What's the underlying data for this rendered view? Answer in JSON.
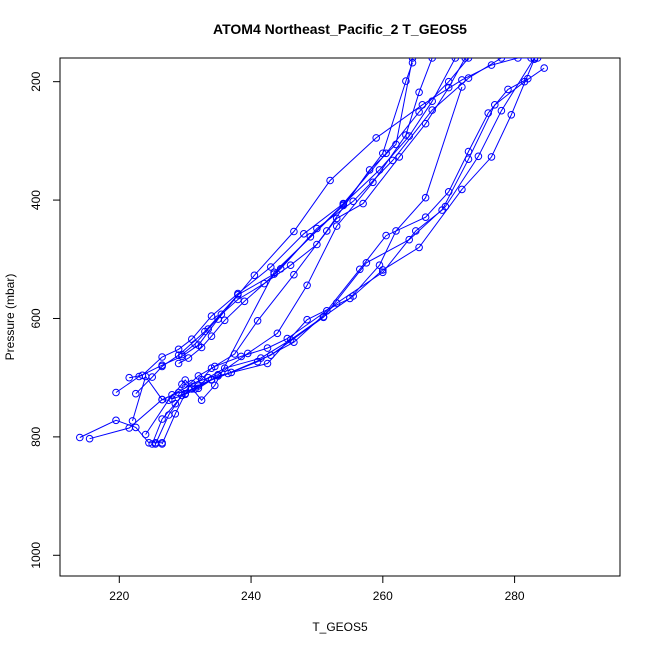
{
  "chart_data": {
    "type": "scatter",
    "title": "ATOM4 Northeast_Pacific_2 T_GEOS5",
    "xlabel": "T_GEOS5",
    "ylabel": "Pressure (mbar)",
    "xlim": [
      211,
      296
    ],
    "ylim": [
      1035,
      160
    ],
    "y_reversed": true,
    "x_ticks": [
      220,
      240,
      260,
      280
    ],
    "y_ticks": [
      200,
      400,
      600,
      800,
      1000
    ],
    "color": "#0000ff",
    "marker": "open-circle",
    "connected": true,
    "grid": false,
    "series": [
      {
        "x": [
          214,
          219.5,
          222.5,
          224.5,
          225.5,
          226.5
        ],
        "y": [
          801,
          772,
          784,
          810,
          810,
          810
        ]
      },
      {
        "x": [
          219.5,
          223,
          226.5,
          229.5,
          232,
          235,
          240.5,
          246.5,
          252,
          259,
          266,
          272,
          276.5,
          280.5,
          283.5
        ],
        "y": [
          725,
          698,
          679,
          664,
          645,
          601,
          527,
          453,
          367,
          295,
          239,
          197,
          172,
          160,
          160
        ]
      },
      {
        "x": [
          221.5,
          223.5,
          226.5,
          229,
          231,
          234,
          238,
          243,
          248,
          254,
          260.5,
          265.5,
          270,
          273
        ],
        "y": [
          700,
          696,
          665,
          652,
          635,
          596,
          558,
          513,
          457,
          406,
          321,
          251,
          200,
          160
        ]
      },
      {
        "x": [
          222,
          224,
          226.5,
          227.5,
          229.5,
          230,
          232.5,
          234.5,
          243.5,
          254,
          260,
          263.5,
          264.5
        ],
        "y": [
          773,
          698,
          737,
          738,
          711,
          704,
          738,
          713,
          522,
          409,
          321,
          199,
          168
        ]
      },
      {
        "x": [
          222.5,
          225,
          226.5,
          229,
          233,
          238,
          243.5,
          249,
          254,
          259.5,
          264,
          267.5,
          271
        ],
        "y": [
          727,
          699,
          681,
          662,
          622,
          560,
          525,
          462,
          407,
          349,
          292,
          233,
          160
        ]
      },
      {
        "x": [
          224,
          228,
          232.5,
          234,
          237.5,
          241,
          246.5,
          251.5,
          258,
          262,
          264.5
        ],
        "y": [
          796,
          729,
          703,
          684,
          660,
          604,
          526,
          452,
          349,
          306,
          160
        ]
      },
      {
        "x": [
          225,
          226.5,
          228.5,
          231,
          235,
          239.5,
          244,
          248.5,
          253,
          258.5,
          263.5,
          265.5,
          267.5
        ],
        "y": [
          812,
          770,
          744,
          710,
          695,
          659,
          625,
          544,
          444,
          370,
          290,
          218,
          160
        ]
      },
      {
        "x": [
          215.5,
          221.5,
          226.5,
          229,
          231.5,
          235,
          242.5,
          248.5,
          255,
          259.5,
          262,
          266.5,
          272
        ],
        "y": [
          803,
          785,
          737,
          725,
          719,
          697,
          676,
          602,
          566,
          510,
          452,
          396,
          209
        ]
      },
      {
        "x": [
          225.5,
          227.5,
          229.5,
          231,
          234,
          236.5,
          243,
          251,
          257.5,
          264,
          269.5,
          274.5,
          278,
          283
        ],
        "y": [
          812,
          763,
          730,
          719,
          703,
          693,
          662,
          598,
          506,
          467,
          411,
          326,
          249,
          160
        ]
      },
      {
        "x": [
          226.5,
          228.5,
          230,
          232,
          233.5,
          236,
          241.5,
          246,
          251,
          255.5,
          260,
          265.5,
          272,
          276.5,
          279.5,
          283
        ],
        "y": [
          812,
          761,
          727,
          714,
          700,
          684,
          667,
          636,
          597,
          562,
          518,
          480,
          382,
          327,
          256,
          162
        ]
      },
      {
        "x": [
          228,
          230,
          232,
          234,
          237,
          241,
          246.5,
          253,
          260,
          265,
          269,
          273,
          277,
          281.5,
          284.5
        ],
        "y": [
          736,
          728,
          718,
          704,
          691,
          673,
          640,
          574,
          522,
          452,
          417,
          331,
          239,
          200,
          177
        ]
      },
      {
        "x": [
          229,
          230.5,
          232.5,
          234,
          236,
          239,
          244.5,
          250,
          255.5,
          261.5,
          267.5,
          273,
          278,
          282.5
        ],
        "y": [
          676,
          667,
          649,
          630,
          603,
          571,
          516,
          448,
          402,
          333,
          248,
          194,
          160,
          160
        ]
      },
      {
        "x": [
          229.5,
          231.5,
          233.5,
          235.5,
          238,
          242,
          246,
          250,
          253,
          257,
          262.5,
          266.5,
          270,
          272.5
        ],
        "y": [
          661,
          643,
          618,
          593,
          568,
          541,
          510,
          475,
          431,
          406,
          327,
          271,
          210,
          160
        ]
      },
      {
        "x": [
          230,
          232,
          234.5,
          238.5,
          242.5,
          245.5,
          251.5,
          256.5,
          260.5,
          266.5,
          270,
          273,
          276,
          279,
          282
        ],
        "y": [
          717,
          697,
          681,
          664,
          650,
          634,
          587,
          517,
          460,
          429,
          386,
          318,
          253,
          213,
          195
        ]
      }
    ]
  }
}
